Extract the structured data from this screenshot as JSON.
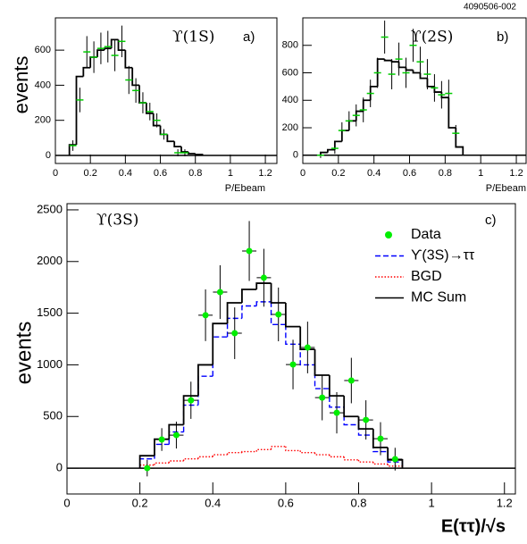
{
  "figure_id": "4090506-002",
  "chart_data": [
    {
      "type": "histogram",
      "title": "ϒ(1S)",
      "panel_label": "a)",
      "x_label": "P/Ebeam",
      "y_label": "events",
      "xlim": [
        0,
        1.266
      ],
      "ylim": [
        -46,
        784
      ],
      "xticks": [
        0,
        0.2,
        0.4,
        0.6,
        0.8,
        1,
        1.2
      ],
      "yticks": [
        0,
        200,
        400,
        600
      ],
      "bins": [
        0.08,
        0.12,
        0.16,
        0.2,
        0.24,
        0.28,
        0.32,
        0.36,
        0.4,
        0.44,
        0.48,
        0.52,
        0.56,
        0.6,
        0.64,
        0.68,
        0.72,
        0.76,
        0.8,
        0.84
      ],
      "series": [
        {
          "color": "#000000",
          "style": "solid",
          "values": [
            60,
            450,
            500,
            560,
            600,
            610,
            660,
            600,
            500,
            400,
            300,
            240,
            170,
            120,
            80,
            50,
            20,
            10,
            5
          ]
        }
      ],
      "points": {
        "color": "#00cc00",
        "marker": "dash",
        "x": [
          0.1,
          0.14,
          0.18,
          0.22,
          0.26,
          0.3,
          0.34,
          0.38,
          0.42,
          0.46,
          0.5,
          0.54,
          0.58,
          0.62,
          0.7,
          0.74
        ],
        "values": [
          56,
          316,
          590,
          560,
          610,
          620,
          570,
          650,
          430,
          370,
          300,
          250,
          200,
          120,
          15,
          15
        ],
        "errors": [
          30,
          70,
          90,
          90,
          90,
          90,
          90,
          90,
          80,
          70,
          60,
          50,
          40,
          30,
          20,
          20
        ]
      }
    },
    {
      "type": "histogram",
      "title": "ϒ(2S)",
      "panel_label": "b)",
      "x_label": "P/Ebeam",
      "xlim": [
        0,
        1.255
      ],
      "ylim": [
        -60,
        1000
      ],
      "xticks": [
        0,
        0.2,
        0.4,
        0.6,
        0.8,
        1,
        1.2
      ],
      "yticks": [
        0,
        200,
        400,
        600,
        800
      ],
      "bins": [
        0.1,
        0.14,
        0.18,
        0.22,
        0.26,
        0.3,
        0.34,
        0.38,
        0.42,
        0.46,
        0.5,
        0.54,
        0.58,
        0.62,
        0.66,
        0.7,
        0.74,
        0.78,
        0.82,
        0.86,
        0.9
      ],
      "series": [
        {
          "color": "#000000",
          "style": "solid",
          "values": [
            20,
            40,
            100,
            180,
            250,
            320,
            400,
            500,
            700,
            690,
            680,
            640,
            620,
            600,
            560,
            500,
            460,
            420,
            200,
            60
          ]
        }
      ],
      "points": {
        "color": "#00cc00",
        "marker": "dash",
        "x": [
          0.1,
          0.18,
          0.22,
          0.26,
          0.3,
          0.34,
          0.38,
          0.42,
          0.46,
          0.5,
          0.54,
          0.58,
          0.62,
          0.66,
          0.7,
          0.74,
          0.78,
          0.82,
          0.86
        ],
        "values": [
          0,
          50,
          180,
          250,
          290,
          330,
          450,
          600,
          860,
          590,
          700,
          600,
          800,
          680,
          590,
          490,
          440,
          450,
          160
        ],
        "errors": [
          20,
          40,
          60,
          70,
          80,
          90,
          100,
          110,
          120,
          110,
          120,
          110,
          120,
          110,
          110,
          100,
          100,
          100,
          60
        ]
      }
    },
    {
      "type": "histogram",
      "title": "ϒ(3S)",
      "panel_label": "c)",
      "x_label": "E(ττ)/√s",
      "y_label": "events",
      "xlim": [
        0,
        1.23
      ],
      "ylim": [
        -250,
        2560
      ],
      "xticks": [
        0,
        0.2,
        0.4,
        0.6,
        0.8,
        1,
        1.2
      ],
      "yticks": [
        0,
        500,
        1000,
        1500,
        2000,
        2500
      ],
      "legend": "top-right",
      "bins": [
        0.2,
        0.24,
        0.28,
        0.32,
        0.36,
        0.4,
        0.44,
        0.48,
        0.52,
        0.56,
        0.6,
        0.64,
        0.68,
        0.72,
        0.76,
        0.8,
        0.84,
        0.88,
        0.92
      ],
      "series": [
        {
          "name": "ϒ(3S)→ττ",
          "color": "#0000ff",
          "style": "dashed",
          "values": [
            90,
            230,
            350,
            610,
            890,
            1270,
            1450,
            1570,
            1610,
            1390,
            1200,
            1000,
            770,
            590,
            420,
            320,
            160,
            60
          ]
        },
        {
          "name": "BGD",
          "color": "#ff0000",
          "style": "dotted",
          "values": [
            30,
            50,
            70,
            90,
            110,
            130,
            150,
            160,
            180,
            210,
            170,
            150,
            130,
            110,
            80,
            60,
            40,
            20
          ]
        },
        {
          "name": "MC Sum",
          "color": "#000000",
          "style": "solid",
          "values": [
            120,
            280,
            420,
            700,
            1000,
            1400,
            1600,
            1730,
            1790,
            1600,
            1370,
            1150,
            900,
            700,
            500,
            380,
            200,
            80
          ]
        }
      ],
      "points": {
        "name": "Data",
        "color": "#00ee00",
        "marker": "circle",
        "x": [
          0.22,
          0.26,
          0.3,
          0.34,
          0.38,
          0.42,
          0.46,
          0.5,
          0.54,
          0.58,
          0.62,
          0.66,
          0.7,
          0.74,
          0.78,
          0.82,
          0.86,
          0.9
        ],
        "values": [
          0,
          277,
          320,
          657,
          1480,
          1704,
          1306,
          2102,
          1843,
          1488,
          1003,
          1168,
          683,
          536,
          848,
          467,
          285,
          87
        ],
        "errors": [
          80,
          110,
          130,
          180,
          250,
          260,
          250,
          290,
          280,
          260,
          240,
          250,
          220,
          200,
          220,
          190,
          160,
          110
        ]
      }
    }
  ]
}
